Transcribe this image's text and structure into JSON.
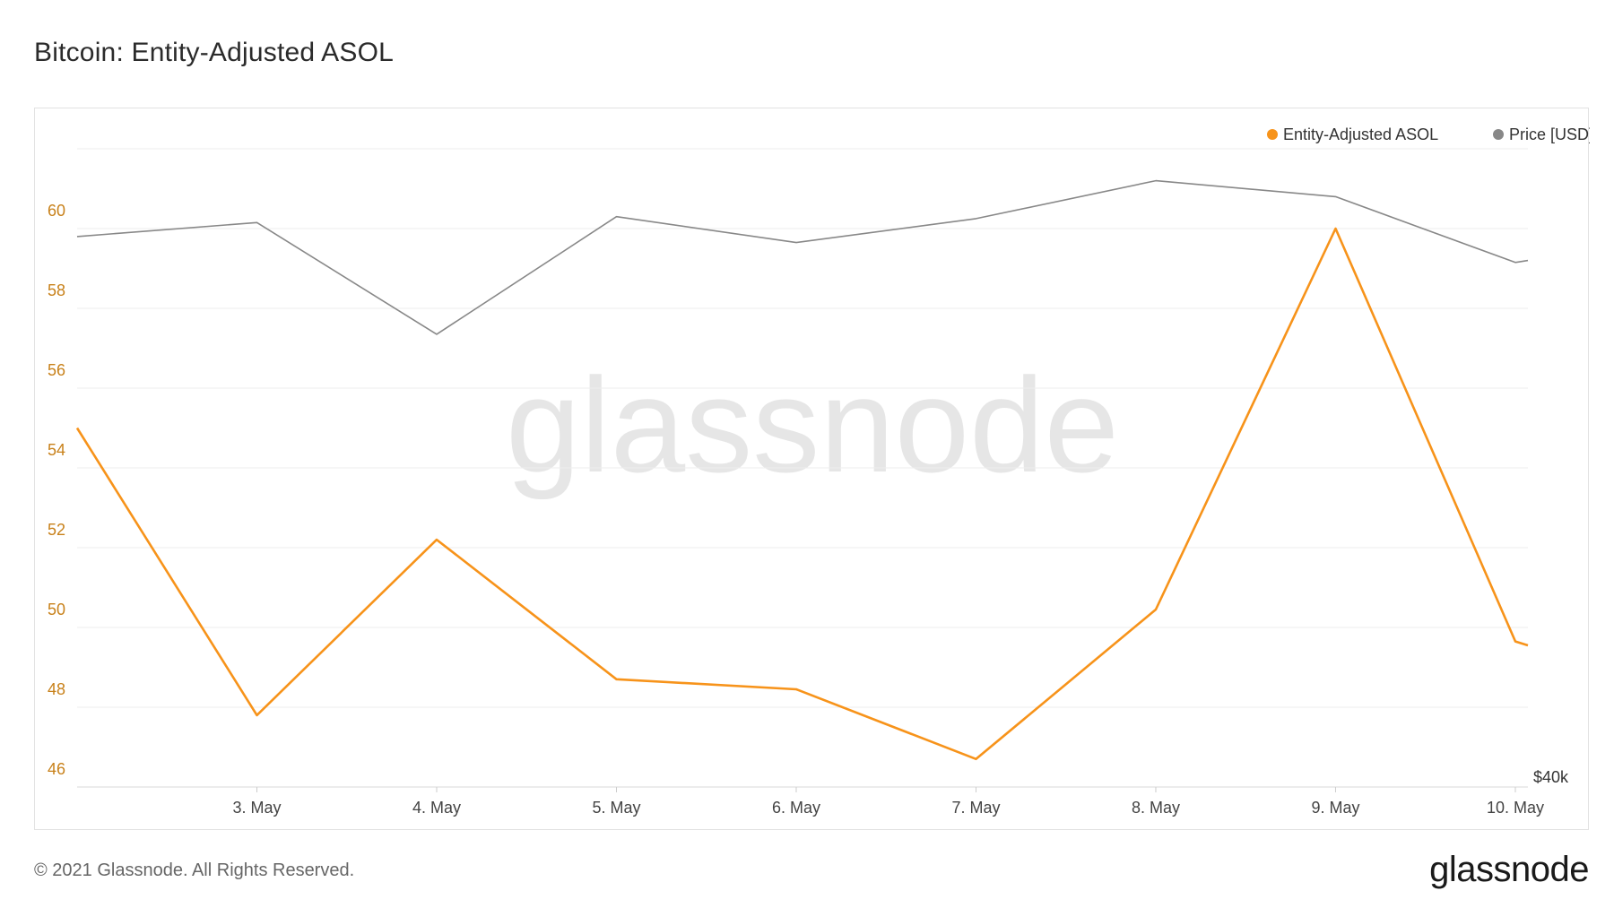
{
  "title": "Bitcoin: Entity-Adjusted ASOL",
  "footer": {
    "copyright": "© 2021 Glassnode. All Rights Reserved.",
    "logo": "glassnode"
  },
  "watermark": "glassnode",
  "colors": {
    "asol": "#f7931a",
    "price": "#888888",
    "axis_label": "#c8811a",
    "grid": "#eeeeee"
  },
  "chart_data": {
    "type": "line",
    "legend_position": "top-right",
    "grid": true,
    "x_ticks": [
      "3. May",
      "4. May",
      "5. May",
      "6. May",
      "7. May",
      "8. May",
      "9. May",
      "10. May"
    ],
    "x": [
      2.0,
      3.0,
      4.0,
      5.0,
      6.0,
      7.0,
      8.0,
      9.0,
      10.0,
      10.07
    ],
    "xlim": [
      2.0,
      10.07
    ],
    "y_left": {
      "ticks": [
        "46",
        "48",
        "50",
        "52",
        "54",
        "56",
        "58",
        "60"
      ],
      "ylim": [
        46,
        62
      ]
    },
    "y_right": {
      "visible_tick": "$40k"
    },
    "series": [
      {
        "name": "Entity-Adjusted ASOL",
        "axis": "left",
        "values": [
          55.0,
          47.8,
          52.2,
          48.7,
          48.45,
          46.7,
          50.45,
          60.0,
          49.65,
          49.55
        ]
      },
      {
        "name": "Price [USD]",
        "axis": "right",
        "values_on_left_scale": [
          59.8,
          60.15,
          57.35,
          60.3,
          59.65,
          60.25,
          61.2,
          60.8,
          59.15,
          59.2
        ]
      }
    ]
  }
}
